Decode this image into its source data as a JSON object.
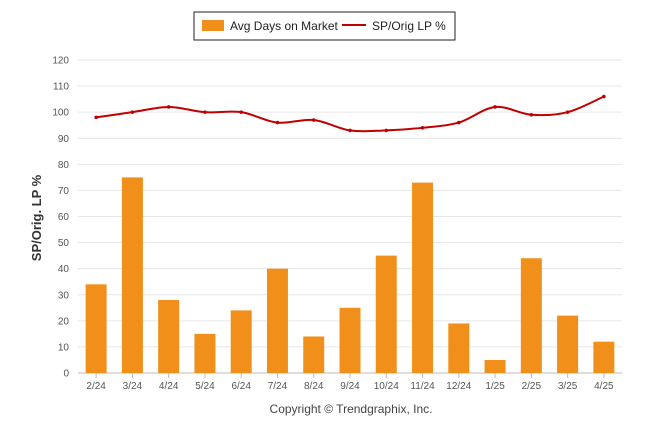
{
  "chart_data": {
    "type": "bar",
    "categories": [
      "2/24",
      "3/24",
      "4/24",
      "5/24",
      "6/24",
      "7/24",
      "8/24",
      "9/24",
      "10/24",
      "11/24",
      "12/24",
      "1/25",
      "2/25",
      "3/25",
      "4/25"
    ],
    "series": [
      {
        "name": "Avg Days on Market",
        "type": "bar",
        "color": "#f0901b",
        "values": [
          34,
          75,
          28,
          15,
          24,
          40,
          14,
          25,
          45,
          73,
          19,
          5,
          44,
          22,
          12
        ]
      },
      {
        "name": "SP/Orig LP %",
        "type": "line",
        "color": "#c00000",
        "values": [
          98,
          100,
          102,
          100,
          100,
          96,
          97,
          93,
          93,
          94,
          96,
          102,
          99,
          100,
          106
        ]
      }
    ],
    "ylabel": "SP/Orig. LP %",
    "ylim": [
      0,
      120
    ],
    "yticks": [
      0,
      10,
      20,
      30,
      40,
      50,
      60,
      70,
      80,
      90,
      100,
      110,
      120
    ],
    "grid": true,
    "legend_position": "top-center"
  },
  "credit": "Copyright © Trendgraphix, Inc."
}
